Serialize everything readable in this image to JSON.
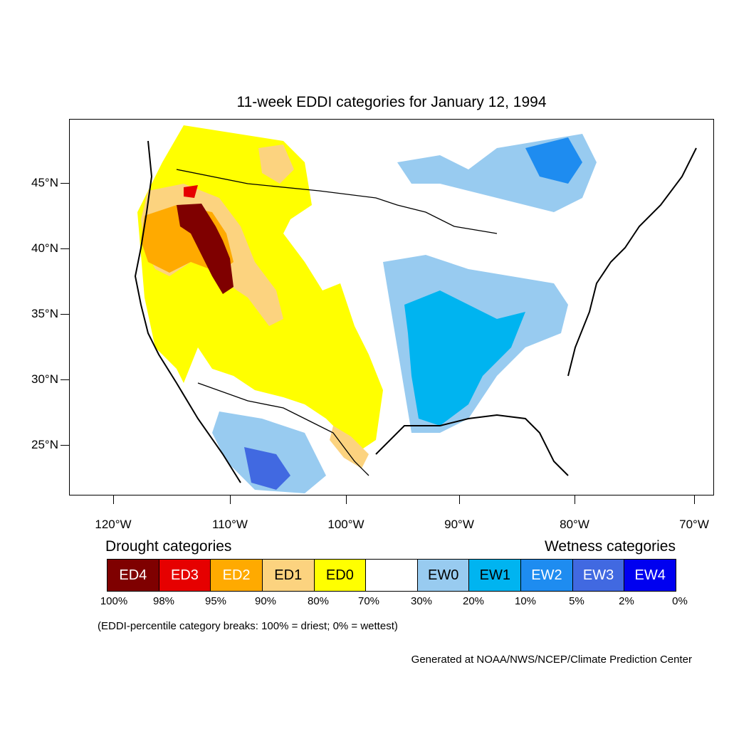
{
  "title": "11-week EDDI categories for January 12, 1994",
  "lat_labels": [
    "45°N",
    "40°N",
    "35°N",
    "30°N",
    "25°N"
  ],
  "lon_labels": [
    "120°W",
    "110°W",
    "100°W",
    "90°W",
    "80°W",
    "70°W"
  ],
  "legend": {
    "drought_heading": "Drought categories",
    "wetness_heading": "Wetness categories",
    "categories": [
      {
        "label": "ED4",
        "color": "#7f0000",
        "text_color": "#ffffff"
      },
      {
        "label": "ED3",
        "color": "#e60000",
        "text_color": "#ffffff"
      },
      {
        "label": "ED2",
        "color": "#ffaa00",
        "text_color": "#ffffff"
      },
      {
        "label": "ED1",
        "color": "#fcd37f",
        "text_color": "#000000"
      },
      {
        "label": "ED0",
        "color": "#ffff00",
        "text_color": "#000000"
      },
      {
        "label": "",
        "color": "#ffffff",
        "text_color": "#000000"
      },
      {
        "label": "EW0",
        "color": "#98cbf0",
        "text_color": "#000000"
      },
      {
        "label": "EW1",
        "color": "#00b4f0",
        "text_color": "#000000"
      },
      {
        "label": "EW2",
        "color": "#1e8cf0",
        "text_color": "#ffffff"
      },
      {
        "label": "EW3",
        "color": "#4169e1",
        "text_color": "#ffffff"
      },
      {
        "label": "EW4",
        "color": "#0000f0",
        "text_color": "#ffffff"
      }
    ],
    "percent_breaks": [
      "100%",
      "98%",
      "95%",
      "90%",
      "80%",
      "70%",
      "30%",
      "20%",
      "10%",
      "5%",
      "2%",
      "0%"
    ]
  },
  "note": "(EDDI-percentile category breaks: 100% = driest; 0% = wettest)",
  "credit": "Generated at NOAA/NWS/NCEP/Climate Prediction Center"
}
